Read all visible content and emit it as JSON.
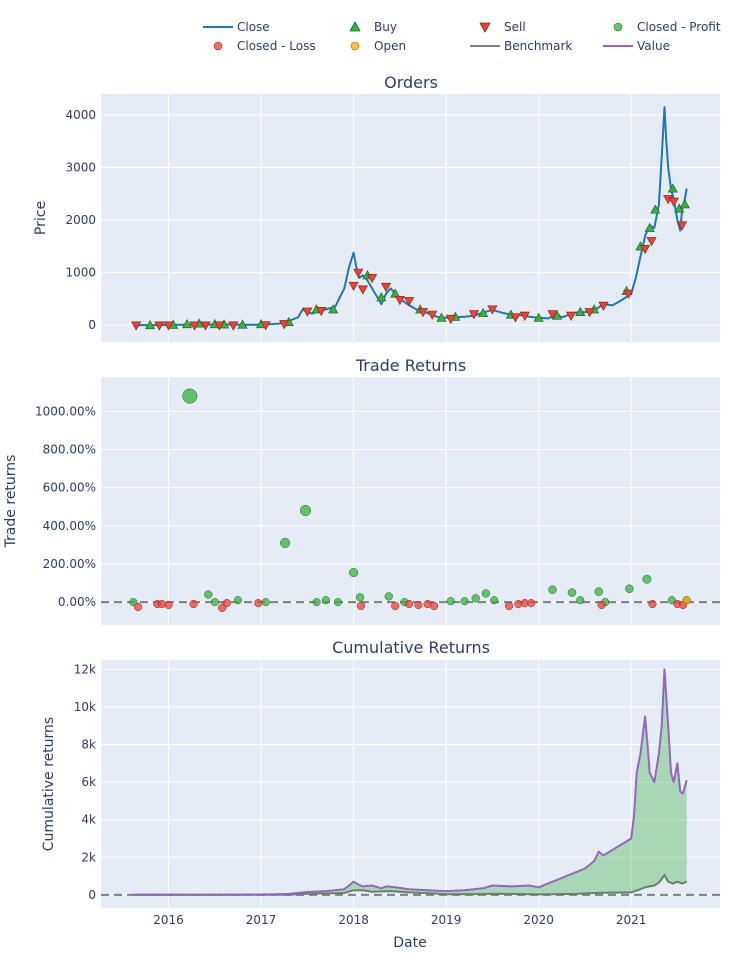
{
  "legend": [
    {
      "label": "Close",
      "symbol": "line",
      "color": "#1f77b4"
    },
    {
      "label": "Buy",
      "symbol": "triangle-up",
      "color": "#37b13f"
    },
    {
      "label": "Sell",
      "symbol": "triangle-down",
      "color": "#ea4335"
    },
    {
      "label": "Closed - Profit",
      "symbol": "circle",
      "color": "#37b13f"
    },
    {
      "label": "Closed - Loss",
      "symbol": "circle",
      "color": "#ea4335"
    },
    {
      "label": "Open",
      "symbol": "circle",
      "color": "#ffaa00"
    },
    {
      "label": "Benchmark",
      "symbol": "line",
      "color": "#7f7f7f"
    },
    {
      "label": "Value",
      "symbol": "line",
      "color": "#9467bd"
    }
  ],
  "xaxis": {
    "title": "Date",
    "range": [
      2015.27,
      2021.96
    ],
    "ticks": [
      2016,
      2017,
      2018,
      2019,
      2020,
      2021
    ],
    "tick_labels": [
      "2016",
      "2017",
      "2018",
      "2019",
      "2020",
      "2021"
    ]
  },
  "chart_data": [
    {
      "type": "line",
      "title": "Orders",
      "ylabel": "Price",
      "ylim": [
        -320,
        4400
      ],
      "yticks": [
        0,
        1000,
        2000,
        3000,
        4000
      ],
      "ytick_labels": [
        "0",
        "1000",
        "2000",
        "3000",
        "4000"
      ],
      "series": [
        {
          "name": "Close",
          "color": "#1f77b4",
          "x": [
            2015.62,
            2015.8,
            2016.0,
            2016.2,
            2016.4,
            2016.6,
            2016.8,
            2017.0,
            2017.2,
            2017.3,
            2017.4,
            2017.45,
            2017.5,
            2017.55,
            2017.62,
            2017.7,
            2017.8,
            2017.9,
            2017.95,
            2018.0,
            2018.03,
            2018.06,
            2018.1,
            2018.15,
            2018.2,
            2018.25,
            2018.3,
            2018.35,
            2018.4,
            2018.45,
            2018.5,
            2018.6,
            2018.7,
            2018.8,
            2018.9,
            2018.95,
            2019.0,
            2019.1,
            2019.2,
            2019.3,
            2019.4,
            2019.5,
            2019.6,
            2019.7,
            2019.8,
            2019.9,
            2020.0,
            2020.1,
            2020.2,
            2020.25,
            2020.3,
            2020.4,
            2020.5,
            2020.6,
            2020.7,
            2020.8,
            2020.9,
            2021.0,
            2021.05,
            2021.1,
            2021.15,
            2021.2,
            2021.25,
            2021.3,
            2021.33,
            2021.36,
            2021.38,
            2021.4,
            2021.43,
            2021.46,
            2021.5,
            2021.53,
            2021.55,
            2021.58,
            2021.6
          ],
          "y": [
            3,
            0,
            5,
            10,
            12,
            15,
            10,
            10,
            30,
            80,
            150,
            300,
            250,
            220,
            280,
            300,
            350,
            700,
            1100,
            1380,
            1100,
            900,
            950,
            850,
            700,
            550,
            400,
            600,
            700,
            600,
            500,
            380,
            280,
            230,
            160,
            140,
            140,
            150,
            160,
            180,
            240,
            290,
            240,
            200,
            190,
            160,
            140,
            130,
            200,
            150,
            180,
            240,
            250,
            280,
            400,
            380,
            480,
            600,
            900,
            1300,
            1700,
            1900,
            1850,
            2300,
            3200,
            4150,
            3500,
            3000,
            2600,
            2400,
            2000,
            1800,
            2200,
            2400,
            2600
          ]
        },
        {
          "name": "Buy",
          "color": "#37b13f",
          "x": [
            2015.8,
            2016.05,
            2016.2,
            2016.33,
            2016.5,
            2016.6,
            2016.8,
            2017.0,
            2017.3,
            2017.6,
            2017.78,
            2018.15,
            2018.3,
            2018.45,
            2018.72,
            2018.95,
            2019.1,
            2019.4,
            2019.7,
            2020.0,
            2020.2,
            2020.45,
            2020.6,
            2020.95,
            2021.1,
            2021.2,
            2021.26,
            2021.45,
            2021.52,
            2021.58
          ],
          "y": [
            0,
            8,
            20,
            30,
            20,
            15,
            10,
            20,
            60,
            300,
            300,
            950,
            530,
            600,
            300,
            140,
            160,
            230,
            200,
            140,
            180,
            250,
            300,
            650,
            1500,
            1850,
            2200,
            2600,
            2220,
            2300
          ]
        },
        {
          "name": "Sell",
          "color": "#ea4335",
          "x": [
            2015.65,
            2015.9,
            2016.0,
            2016.28,
            2016.4,
            2016.55,
            2016.7,
            2017.05,
            2017.25,
            2017.5,
            2017.65,
            2018.0,
            2018.05,
            2018.1,
            2018.2,
            2018.35,
            2018.5,
            2018.6,
            2018.75,
            2018.85,
            2019.05,
            2019.3,
            2019.5,
            2019.75,
            2019.85,
            2020.15,
            2020.35,
            2020.55,
            2020.7,
            2020.97,
            2021.15,
            2021.22,
            2021.4,
            2021.46,
            2021.55
          ],
          "y": [
            -5,
            -5,
            -5,
            -5,
            -5,
            -5,
            -5,
            0,
            20,
            260,
            270,
            750,
            1000,
            680,
            900,
            730,
            480,
            460,
            250,
            200,
            120,
            210,
            300,
            150,
            180,
            210,
            180,
            250,
            370,
            600,
            1450,
            1600,
            2400,
            2350,
            1900
          ]
        }
      ]
    },
    {
      "type": "scatter",
      "title": "Trade Returns",
      "ylabel": "Trade returns",
      "ylim": [
        -1.2,
        11.8
      ],
      "yticks": [
        0,
        2,
        4,
        6,
        8,
        10
      ],
      "ytick_labels": [
        "0.00%",
        "200.00%",
        "400.00%",
        "600.00%",
        "800.00%",
        "1000.00%"
      ],
      "baseline": 0,
      "series": [
        {
          "name": "Closed - Profit",
          "color": "#37b13f",
          "x": [
            2015.62,
            2016.23,
            2016.43,
            2016.5,
            2016.75,
            2017.05,
            2017.26,
            2017.48,
            2017.6,
            2017.7,
            2017.83,
            2018.0,
            2018.07,
            2018.38,
            2018.55,
            2019.05,
            2019.2,
            2019.32,
            2019.43,
            2019.52,
            2020.15,
            2020.36,
            2020.45,
            2020.65,
            2020.72,
            2020.98,
            2021.17,
            2021.44,
            2021.6
          ],
          "y": [
            0.0,
            10.8,
            0.4,
            0.0,
            0.1,
            0.0,
            3.1,
            4.8,
            0.0,
            0.1,
            0.0,
            1.55,
            0.25,
            0.3,
            0.0,
            0.05,
            0.05,
            0.2,
            0.45,
            0.1,
            0.65,
            0.5,
            0.1,
            0.55,
            0.0,
            0.7,
            1.2,
            0.1,
            0.1
          ]
        },
        {
          "name": "Closed - Loss",
          "color": "#ea4335",
          "x": [
            2015.67,
            2015.88,
            2015.93,
            2016.0,
            2016.27,
            2016.58,
            2016.63,
            2016.97,
            2018.08,
            2018.45,
            2018.6,
            2018.7,
            2018.8,
            2018.87,
            2019.68,
            2019.78,
            2019.85,
            2019.92,
            2020.68,
            2021.23,
            2021.5,
            2021.56
          ],
          "y": [
            -0.25,
            -0.1,
            -0.1,
            -0.15,
            -0.1,
            -0.3,
            -0.05,
            -0.05,
            -0.2,
            -0.2,
            -0.1,
            -0.15,
            -0.1,
            -0.2,
            -0.2,
            -0.1,
            -0.05,
            -0.05,
            -0.15,
            -0.1,
            -0.1,
            -0.15
          ]
        },
        {
          "name": "Open",
          "color": "#ffaa00",
          "x": [
            2021.6
          ],
          "y": [
            0.1
          ]
        }
      ]
    },
    {
      "type": "area",
      "title": "Cumulative Returns",
      "ylabel": "Cumulative returns",
      "ylim": [
        -700,
        12500
      ],
      "yticks": [
        0,
        2000,
        4000,
        6000,
        8000,
        10000,
        12000
      ],
      "ytick_labels": [
        "0",
        "2k",
        "4k",
        "6k",
        "8k",
        "10k",
        "12k"
      ],
      "baseline": 0,
      "series": [
        {
          "name": "Value",
          "color": "#9467bd",
          "x": [
            2015.62,
            2016.0,
            2016.5,
            2017.0,
            2017.3,
            2017.5,
            2017.7,
            2017.9,
            2017.95,
            2018.0,
            2018.05,
            2018.1,
            2018.2,
            2018.3,
            2018.35,
            2018.45,
            2018.6,
            2018.8,
            2019.0,
            2019.2,
            2019.4,
            2019.5,
            2019.7,
            2019.9,
            2020.0,
            2020.1,
            2020.2,
            2020.3,
            2020.4,
            2020.5,
            2020.6,
            2020.65,
            2020.7,
            2020.8,
            2020.9,
            2021.0,
            2021.03,
            2021.06,
            2021.1,
            2021.15,
            2021.18,
            2021.2,
            2021.25,
            2021.3,
            2021.33,
            2021.36,
            2021.4,
            2021.43,
            2021.46,
            2021.5,
            2021.53,
            2021.56,
            2021.6
          ],
          "y": [
            0,
            5,
            10,
            20,
            50,
            150,
            200,
            300,
            500,
            700,
            550,
            450,
            500,
            350,
            450,
            400,
            300,
            250,
            200,
            250,
            350,
            500,
            450,
            500,
            400,
            600,
            800,
            1000,
            1200,
            1400,
            1800,
            2300,
            2100,
            2400,
            2700,
            3000,
            4200,
            6500,
            7500,
            9500,
            7800,
            6500,
            6000,
            7500,
            9000,
            12000,
            9000,
            6500,
            6000,
            7000,
            5500,
            5400,
            6100
          ]
        },
        {
          "name": "Benchmark",
          "color": "#6b7f6b",
          "x": [
            2015.62,
            2016.0,
            2016.5,
            2017.0,
            2017.3,
            2017.5,
            2017.7,
            2017.9,
            2018.0,
            2018.1,
            2018.2,
            2018.4,
            2018.6,
            2018.8,
            2019.0,
            2019.3,
            2019.5,
            2019.7,
            2020.0,
            2020.2,
            2020.4,
            2020.6,
            2020.8,
            2021.0,
            2021.1,
            2021.15,
            2021.2,
            2021.25,
            2021.3,
            2021.36,
            2021.4,
            2021.45,
            2021.5,
            2021.55,
            2021.6
          ],
          "y": [
            0,
            0,
            0,
            0,
            15,
            60,
            70,
            100,
            250,
            250,
            170,
            200,
            130,
            80,
            30,
            40,
            60,
            50,
            25,
            40,
            50,
            100,
            120,
            130,
            300,
            400,
            450,
            500,
            650,
            1050,
            700,
            600,
            700,
            600,
            700
          ]
        }
      ]
    }
  ]
}
